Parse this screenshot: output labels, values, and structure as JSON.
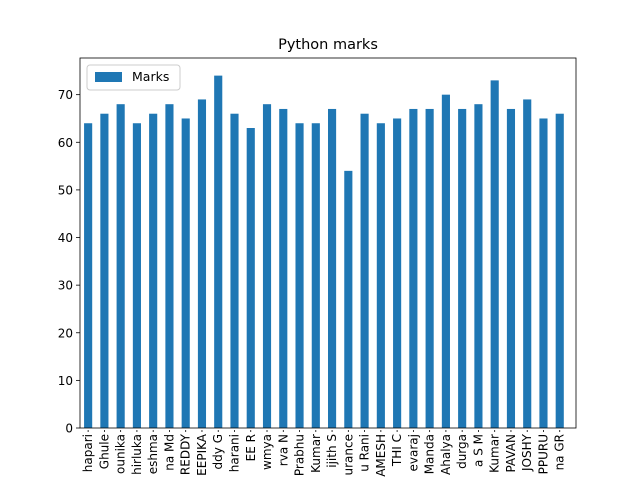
{
  "chart_data": {
    "type": "bar",
    "title": "Python marks",
    "xlabel": "",
    "ylabel": "",
    "ylim": [
      0,
      77.7
    ],
    "yticks": [
      0,
      10,
      20,
      30,
      40,
      50,
      60,
      70
    ],
    "legend": {
      "position": "top-left"
    },
    "grid": false,
    "categories": [
      "hapari",
      "Ghule",
      "ounika",
      "hirluka",
      "eshma",
      "na Md",
      "REDDY",
      "EEPIKA",
      "ddy G",
      "harani",
      "EE R",
      "wmya",
      "rva N",
      "Prabhu",
      "Kumar",
      "ijith S",
      "urance",
      "u Rani",
      "AMESH",
      "THI C",
      "evaraj",
      "Manda",
      "Ahalya",
      "durga",
      "a S M",
      "Kumar",
      "PAVAN",
      "JOSHY",
      "PPURU",
      "na GR"
    ],
    "series": [
      {
        "name": "Marks",
        "color": "#1f77b4",
        "values": [
          64,
          66,
          68,
          64,
          66,
          68,
          65,
          69,
          74,
          66,
          63,
          68,
          67,
          64,
          64,
          67,
          54,
          66,
          64,
          65,
          67,
          67,
          70,
          67,
          68,
          73,
          67,
          69,
          65,
          66
        ]
      }
    ]
  }
}
